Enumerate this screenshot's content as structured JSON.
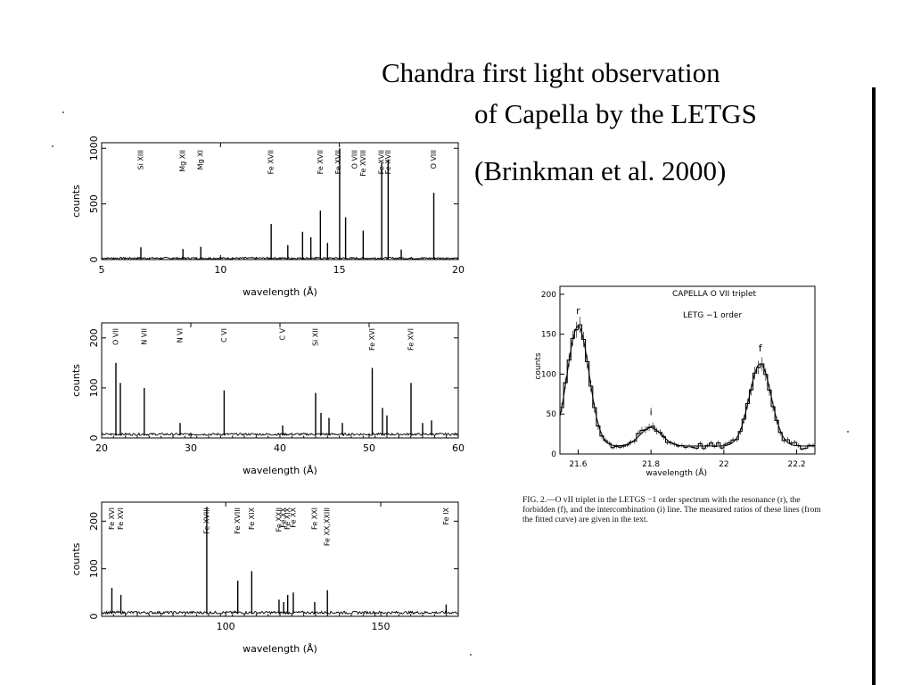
{
  "slide": {
    "title_line1": "Chandra first light observation",
    "title_line2": "of Capella   by the   LETGS",
    "title_line3": "(Brinkman et al. 2000)"
  },
  "caption": {
    "text": "FIG. 2.—O vII triplet in the LETGS −1 order spectrum with the resonance (r), the forbidden (f), and the intercombination (i) line. The measured ratios of these lines (from the fitted curve) are given in the text."
  },
  "chart_data": [
    {
      "id": "panel1",
      "type": "line",
      "xlabel": "wavelength (Å)",
      "ylabel": "counts",
      "xlim": [
        5,
        20
      ],
      "ylim": [
        0,
        1050
      ],
      "xticks": [
        5,
        10,
        15,
        20
      ],
      "yticks": [
        0,
        500,
        1000
      ],
      "lines": [
        {
          "x": 6.65,
          "y": 110
        },
        {
          "x": 8.42,
          "y": 95
        },
        {
          "x": 9.17,
          "y": 115
        },
        {
          "x": 12.13,
          "y": 320
        },
        {
          "x": 12.83,
          "y": 130
        },
        {
          "x": 13.45,
          "y": 250
        },
        {
          "x": 13.8,
          "y": 200
        },
        {
          "x": 14.2,
          "y": 440
        },
        {
          "x": 14.5,
          "y": 150
        },
        {
          "x": 15.01,
          "y": 1000
        },
        {
          "x": 15.26,
          "y": 380
        },
        {
          "x": 16.0,
          "y": 260
        },
        {
          "x": 16.78,
          "y": 870
        },
        {
          "x": 17.05,
          "y": 900
        },
        {
          "x": 17.6,
          "y": 90
        },
        {
          "x": 18.97,
          "y": 600
        }
      ],
      "ion_labels": [
        {
          "text": "Si XIII",
          "x": 6.65
        },
        {
          "text": "Mg XII",
          "x": 8.42
        },
        {
          "text": "Mg XI",
          "x": 9.17
        },
        {
          "text": "Fe XVII",
          "x": 12.13
        },
        {
          "text": "Fe XVII",
          "x": 14.2
        },
        {
          "text": "Fe XVII",
          "x": 14.95
        },
        {
          "text": "O VIII",
          "x": 15.65
        },
        {
          "text": "Fe XVIII",
          "x": 16.0
        },
        {
          "text": "Fe XVII",
          "x": 16.78
        },
        {
          "text": "Fe XVII",
          "x": 17.05
        },
        {
          "text": "O VIII",
          "x": 18.97
        }
      ]
    },
    {
      "id": "panel2",
      "type": "line",
      "xlabel": "wavelength (Å)",
      "ylabel": "counts",
      "xlim": [
        20,
        60
      ],
      "ylim": [
        0,
        230
      ],
      "xticks": [
        20,
        30,
        40,
        50,
        60
      ],
      "yticks": [
        0,
        100,
        200
      ],
      "lines": [
        {
          "x": 21.6,
          "y": 150
        },
        {
          "x": 22.1,
          "y": 110
        },
        {
          "x": 24.78,
          "y": 100
        },
        {
          "x": 28.8,
          "y": 30
        },
        {
          "x": 33.74,
          "y": 95
        },
        {
          "x": 40.3,
          "y": 25
        },
        {
          "x": 44.0,
          "y": 90
        },
        {
          "x": 44.6,
          "y": 50
        },
        {
          "x": 45.5,
          "y": 40
        },
        {
          "x": 47.0,
          "y": 30
        },
        {
          "x": 50.35,
          "y": 140
        },
        {
          "x": 51.5,
          "y": 60
        },
        {
          "x": 52.0,
          "y": 45
        },
        {
          "x": 54.7,
          "y": 110
        },
        {
          "x": 56.0,
          "y": 30
        },
        {
          "x": 57.0,
          "y": 35
        }
      ],
      "ion_labels": [
        {
          "text": "O VII",
          "x": 21.6
        },
        {
          "text": "N VII",
          "x": 24.78
        },
        {
          "text": "N VI",
          "x": 28.8
        },
        {
          "text": "C VI",
          "x": 33.74
        },
        {
          "text": "C V",
          "x": 40.3
        },
        {
          "text": "Si XII",
          "x": 44.0
        },
        {
          "text": "Fe XVI",
          "x": 50.35
        },
        {
          "text": "Fe XVI",
          "x": 54.7
        }
      ]
    },
    {
      "id": "panel3",
      "type": "line",
      "xlabel": "wavelength (Å)",
      "ylabel": "counts",
      "xlim": [
        60,
        175
      ],
      "ylim": [
        0,
        240
      ],
      "xticks": [
        100,
        150
      ],
      "yticks": [
        0,
        100,
        200
      ],
      "lines": [
        {
          "x": 63.3,
          "y": 60
        },
        {
          "x": 66.2,
          "y": 45
        },
        {
          "x": 93.9,
          "y": 230
        },
        {
          "x": 103.9,
          "y": 75
        },
        {
          "x": 108.4,
          "y": 95
        },
        {
          "x": 117.2,
          "y": 35
        },
        {
          "x": 118.7,
          "y": 30
        },
        {
          "x": 120.0,
          "y": 45
        },
        {
          "x": 121.8,
          "y": 50
        },
        {
          "x": 128.7,
          "y": 30
        },
        {
          "x": 132.8,
          "y": 55
        },
        {
          "x": 171.1,
          "y": 25
        }
      ],
      "ion_labels": [
        {
          "text": "Fe XVI",
          "x": 63.3
        },
        {
          "text": "Fe XVI",
          "x": 66.2
        },
        {
          "text": "Fe XVIII",
          "x": 93.9
        },
        {
          "text": "Fe XVIII",
          "x": 103.9
        },
        {
          "text": "Fe XIX",
          "x": 108.4
        },
        {
          "text": "Fe XXII",
          "x": 117.2
        },
        {
          "text": "Fe XX",
          "x": 118.7
        },
        {
          "text": "Fe XIX",
          "x": 120.0
        },
        {
          "text": "Fe XX",
          "x": 121.8
        },
        {
          "text": "Fe XXI",
          "x": 128.7
        },
        {
          "text": "Fe XX,XXIII",
          "x": 132.8
        },
        {
          "text": "Fe IX",
          "x": 171.1
        }
      ]
    },
    {
      "id": "triplet",
      "type": "line",
      "title": "CAPELLA  O VII triplet",
      "subtitle": "LETG −1 order",
      "xlabel": "wavelength (Å)",
      "ylabel": "counts",
      "xlim": [
        21.55,
        22.25
      ],
      "ylim": [
        0,
        210
      ],
      "xticks": [
        21.6,
        21.8,
        22,
        22.2
      ],
      "yticks": [
        0,
        50,
        100,
        150,
        200
      ],
      "continuum": 10,
      "peaks": [
        {
          "label": "r",
          "x": 21.6,
          "y": 160
        },
        {
          "label": "i",
          "x": 21.8,
          "y": 33
        },
        {
          "label": "f",
          "x": 22.1,
          "y": 113
        }
      ]
    }
  ]
}
